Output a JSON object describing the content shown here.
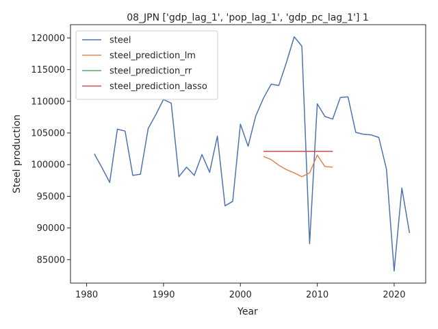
{
  "chart_data": {
    "type": "line",
    "title": "08_JPN ['gdp_lag_1', 'pop_lag_1', 'gdp_pc_lag_1'] 1",
    "xlabel": "Year",
    "ylabel": "Steel production",
    "xlim": [
      1977.9,
      2024.1
    ],
    "ylim": [
      81300,
      122100
    ],
    "xticks": [
      1980,
      1990,
      2000,
      2010,
      2020
    ],
    "yticks": [
      85000,
      90000,
      95000,
      100000,
      105000,
      110000,
      115000,
      120000
    ],
    "grid": false,
    "legend_position": "top-left",
    "series": [
      {
        "name": "steel",
        "color": "#4c72b0",
        "x": [
          1981,
          1982,
          1983,
          1984,
          1985,
          1986,
          1987,
          1988,
          1989,
          1990,
          1991,
          1992,
          1993,
          1994,
          1995,
          1996,
          1997,
          1998,
          1999,
          2000,
          2001,
          2002,
          2003,
          2004,
          2005,
          2006,
          2007,
          2008,
          2009,
          2010,
          2011,
          2012,
          2013,
          2014,
          2015,
          2016,
          2017,
          2018,
          2019,
          2020,
          2021,
          2022
        ],
        "y": [
          101700,
          99500,
          97200,
          105600,
          105300,
          98300,
          98500,
          105700,
          107900,
          110300,
          109700,
          98100,
          99600,
          98300,
          101600,
          98800,
          104500,
          93500,
          94200,
          106400,
          102900,
          107700,
          110500,
          112700,
          112500,
          116200,
          120200,
          118700,
          87500,
          109600,
          107600,
          107200,
          110600,
          110700,
          105100,
          104800,
          104700,
          104300,
          99300,
          83200,
          96300,
          89200
        ]
      },
      {
        "name": "steel_prediction_lm",
        "color": "#dd8452",
        "x": [
          2003,
          2004,
          2005,
          2006,
          2007,
          2008,
          2009,
          2010,
          2011,
          2012
        ],
        "y": [
          101300,
          100800,
          99900,
          99200,
          98700,
          98100,
          98700,
          101500,
          99700,
          99600
        ]
      },
      {
        "name": "steel_prediction_rr",
        "color": "#55a868",
        "x": [
          2003,
          2004,
          2005,
          2006,
          2007,
          2008,
          2009,
          2010,
          2011,
          2012
        ],
        "y": [
          102100,
          102100,
          102100,
          102100,
          102100,
          102100,
          102100,
          102100,
          102100,
          102100
        ]
      },
      {
        "name": "steel_prediction_lasso",
        "color": "#c44e52",
        "x": [
          2003,
          2004,
          2005,
          2006,
          2007,
          2008,
          2009,
          2010,
          2011,
          2012
        ],
        "y": [
          102100,
          102100,
          102100,
          102100,
          102100,
          102100,
          102100,
          102100,
          102100,
          102100
        ]
      }
    ]
  }
}
